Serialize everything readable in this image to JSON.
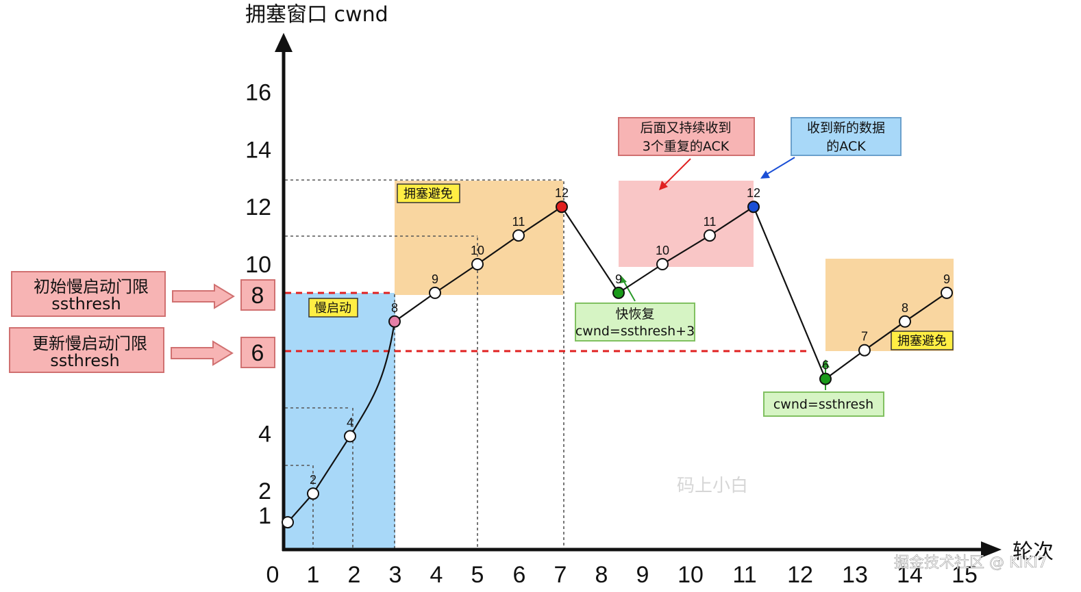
{
  "chart_data": {
    "type": "line",
    "ylabel": "拥塞窗口 cwnd",
    "xlabel": "轮次",
    "x_ticks": [
      "0",
      "1",
      "2",
      "3",
      "4",
      "5",
      "6",
      "7",
      "8",
      "9",
      "10",
      "11",
      "12",
      "13",
      "14",
      "15"
    ],
    "y_ticks": [
      "1",
      "2",
      "4",
      "6",
      "8",
      "10",
      "12",
      "14",
      "16"
    ],
    "y_tick_values": [
      1,
      2,
      4,
      6,
      8,
      10,
      12,
      14,
      16
    ],
    "xlim": [
      0,
      15
    ],
    "ylim": [
      0,
      16
    ],
    "series": [
      {
        "values": [
          {
            "x": 0.1,
            "y": 1,
            "label": "",
            "color": "#ffffff"
          },
          {
            "x": 1,
            "y": 2,
            "label": "2",
            "color": "#ffffff"
          },
          {
            "x": 2,
            "y": 4,
            "label": "4",
            "color": "#ffffff"
          },
          {
            "x": 3,
            "y": 8,
            "label": "8",
            "color": "#e57fa7"
          },
          {
            "x": 4,
            "y": 9,
            "label": "9",
            "color": "#ffffff"
          },
          {
            "x": 5,
            "y": 10,
            "label": "10",
            "color": "#ffffff"
          },
          {
            "x": 6,
            "y": 11,
            "label": "11",
            "color": "#ffffff"
          },
          {
            "x": 7,
            "y": 12,
            "label": "12",
            "color": "#e02020"
          },
          {
            "x": 8.4,
            "y": 9,
            "label": "9",
            "color": "#1a9a1a"
          },
          {
            "x": 9.5,
            "y": 10,
            "label": "10",
            "color": "#ffffff"
          },
          {
            "x": 10.6,
            "y": 11,
            "label": "11",
            "color": "#ffffff"
          },
          {
            "x": 11.7,
            "y": 12,
            "label": "12",
            "color": "#1a4fd6"
          },
          {
            "x": 13.4,
            "y": 6,
            "label": "6",
            "color": "#1a9a1a"
          },
          {
            "x": 14.3,
            "y": 7,
            "label": "7",
            "color": "#ffffff"
          },
          {
            "x": 15.2,
            "y": 8,
            "label": "8",
            "color": "#ffffff"
          },
          {
            "x": 16.1,
            "y": 9,
            "label": "9",
            "color": "#ffffff"
          }
        ]
      }
    ],
    "threshold_lines": [
      {
        "y": 8,
        "label": "8"
      },
      {
        "y": 6,
        "label": "6"
      }
    ],
    "regions": {
      "slow_start": {
        "label": "慢启动"
      },
      "avoid1": {
        "label": "拥塞避免"
      },
      "fast_recovery": {
        "label": ""
      },
      "avoid2": {
        "label": "拥塞避免"
      }
    },
    "annotations": {
      "init_ssthresh": [
        "初始慢启动门限",
        "ssthresh"
      ],
      "update_ssthresh": [
        "更新慢启动门限",
        "ssthresh"
      ],
      "dup_ack": [
        "后面又持续收到",
        "3个重复的ACK"
      ],
      "new_ack": [
        "收到新的数据",
        "的ACK"
      ],
      "fast_recover": [
        "快恢复",
        "cwnd=ssthresh+3"
      ],
      "cwnd_eq": [
        "cwnd=ssthresh"
      ]
    },
    "colors": {
      "slow_start_fill": "#a8d8f8",
      "avoid_fill": "#f9d6a0",
      "recover_fill": "#f9c6c6",
      "threshold": "#e02020",
      "tag_yellow": "#ffee44"
    }
  },
  "watermarks": {
    "center": "码上小白",
    "footer": "掘金技术社区 @ KIKI7"
  }
}
